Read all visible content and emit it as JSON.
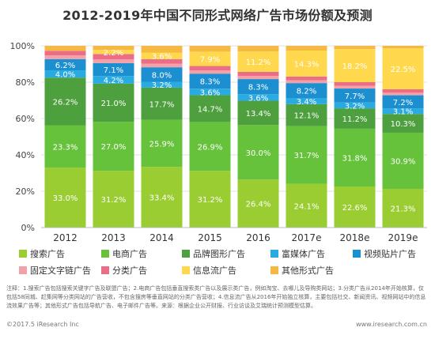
{
  "header": {
    "title": "2012-2019年中国不同形式网络广告市场份额及预测"
  },
  "colors": {
    "search": "#9ACD32",
    "ecommerce": "#66C23B",
    "brand": "#4E9F3D",
    "richmedia": "#29ABE2",
    "videopatch": "#1C8FD0",
    "textlink": "#F4A0A8",
    "classified": "#EC6E86",
    "infoflow": "#FFD84D",
    "other": "#F5B942"
  },
  "chart_data": {
    "type": "bar",
    "stacked": true,
    "categories": [
      "2012",
      "2013",
      "2014",
      "2015",
      "2016",
      "2017e",
      "2018e",
      "2019e"
    ],
    "ylim": [
      0,
      100
    ],
    "yticks": [
      "0%",
      "20%",
      "40%",
      "60%",
      "80%",
      "100%"
    ],
    "legend_position": "bottom",
    "series": [
      {
        "name": "搜索广告",
        "color_key": "search",
        "values": [
          33.0,
          31.2,
          33.4,
          31.2,
          26.4,
          24.1,
          22.6,
          21.3
        ]
      },
      {
        "name": "电商广告",
        "color_key": "ecommerce",
        "values": [
          23.3,
          27.0,
          25.9,
          26.9,
          30.0,
          31.7,
          31.8,
          30.9
        ]
      },
      {
        "name": "品牌图形广告",
        "color_key": "brand",
        "values": [
          26.2,
          21.0,
          17.7,
          14.7,
          13.4,
          12.1,
          11.2,
          10.3
        ]
      },
      {
        "name": "富媒体广告",
        "color_key": "richmedia",
        "values": [
          4.0,
          4.2,
          3.2,
          3.6,
          3.6,
          3.4,
          3.2,
          3.1
        ]
      },
      {
        "name": "视频贴片广告",
        "color_key": "videopatch",
        "values": [
          6.2,
          7.1,
          8.0,
          8.3,
          8.3,
          8.2,
          7.7,
          7.2
        ]
      },
      {
        "name": "固定文字链广告",
        "color_key": "textlink",
        "values": [
          2.0,
          2.0,
          2.0,
          1.8,
          1.7,
          1.5,
          1.5,
          1.4
        ]
      },
      {
        "name": "分类广告",
        "color_key": "classified",
        "values": [
          2.6,
          3.0,
          2.5,
          2.4,
          2.3,
          2.1,
          2.0,
          1.9
        ]
      },
      {
        "name": "信息流广告",
        "color_key": "infoflow",
        "values": [
          0.0,
          2.2,
          3.6,
          7.9,
          11.2,
          14.3,
          18.2,
          22.5
        ]
      },
      {
        "name": "其他形式广告",
        "color_key": "other",
        "values": [
          2.7,
          2.3,
          3.7,
          3.2,
          3.1,
          2.6,
          1.8,
          1.4
        ]
      }
    ],
    "labeled_series": [
      0,
      1,
      2,
      3,
      4,
      7
    ]
  },
  "footnote": "注释：1.搜索广告包括搜索关键字广告及联盟广告；2.电商广告包括垂直搜索类广告以及展示类广告，例如淘宝、去哪儿及导购类网站；3.分类广告从2014年开始核算，仅包括58同城、赶集网等分类网站的广告营收，不包含搜房等垂直网站的分类广告营收；4.信息流广告从2016年开始独立核算，主要包括社交、新闻资讯、视频网站中的信息流效果广告等；其他形式广告包括导航广告、电子邮件广告等。来源：根据企业公开财报、行业访谈及艾瑞统计预测模型估算。",
  "footer": {
    "left": "©2017.5 iResearch Inc",
    "right": "www.iresearch.com.cn"
  }
}
